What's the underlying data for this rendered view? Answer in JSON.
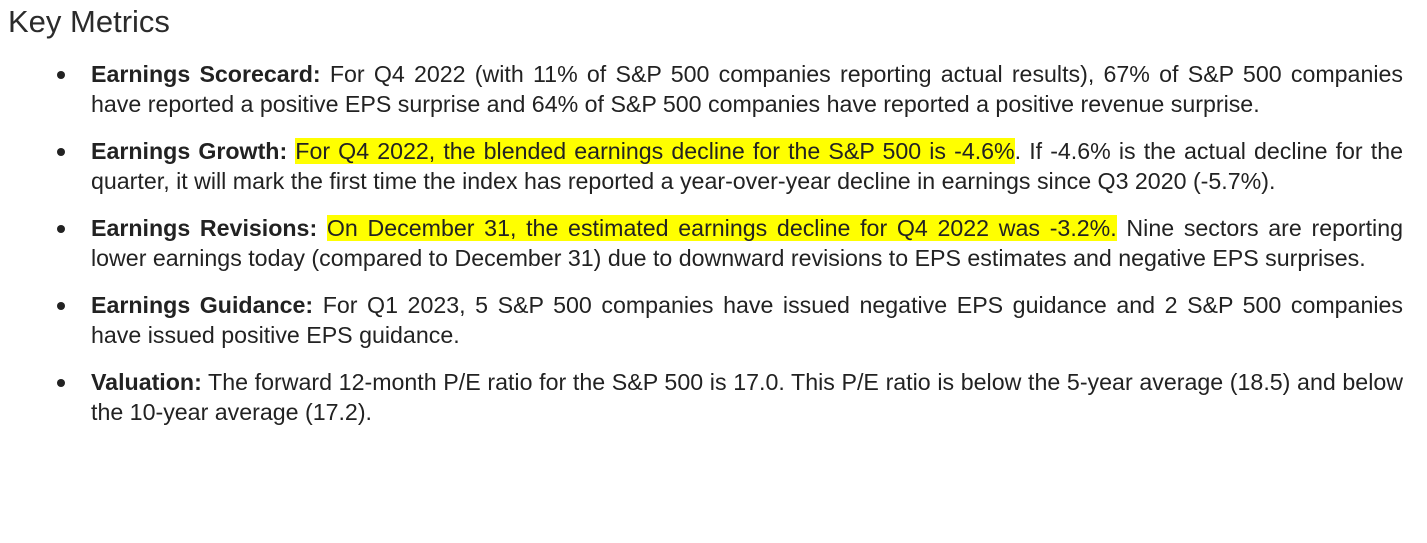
{
  "section": {
    "title": "Key Metrics"
  },
  "bullets": [
    {
      "label": "Earnings Scorecard:",
      "highlight": "",
      "text": " For Q4 2022 (with 11% of S&P 500 companies reporting actual results), 67% of S&P 500 companies have reported a positive EPS surprise and 64% of S&P 500 companies have reported a positive revenue surprise."
    },
    {
      "label": "Earnings Growth:",
      "highlight": "For Q4 2022, the blended earnings decline for the S&P 500 is -4.6%",
      "text": ". If -4.6% is the actual decline for the quarter, it will mark the first time the index has reported a year-over-year decline in earnings since Q3 2020 (-5.7%)."
    },
    {
      "label": "Earnings Revisions:",
      "highlight": "On December 31, the estimated earnings decline for Q4 2022 was -3.2%.",
      "text": " Nine sectors are reporting lower earnings today (compared to December 31) due to downward revisions to EPS estimates and negative EPS surprises."
    },
    {
      "label": "Earnings Guidance:",
      "highlight": "",
      "text": " For Q1 2023, 5 S&P 500 companies have issued negative EPS guidance and 2 S&P 500 companies have issued positive EPS guidance."
    },
    {
      "label": "Valuation:",
      "highlight": "",
      "text": " The forward 12-month P/E ratio for the S&P 500 is 17.0. This P/E ratio is below the 5-year average (18.5) and below the 10-year average (17.2)."
    }
  ],
  "colors": {
    "highlight": "#ffff00",
    "text": "#222222"
  }
}
